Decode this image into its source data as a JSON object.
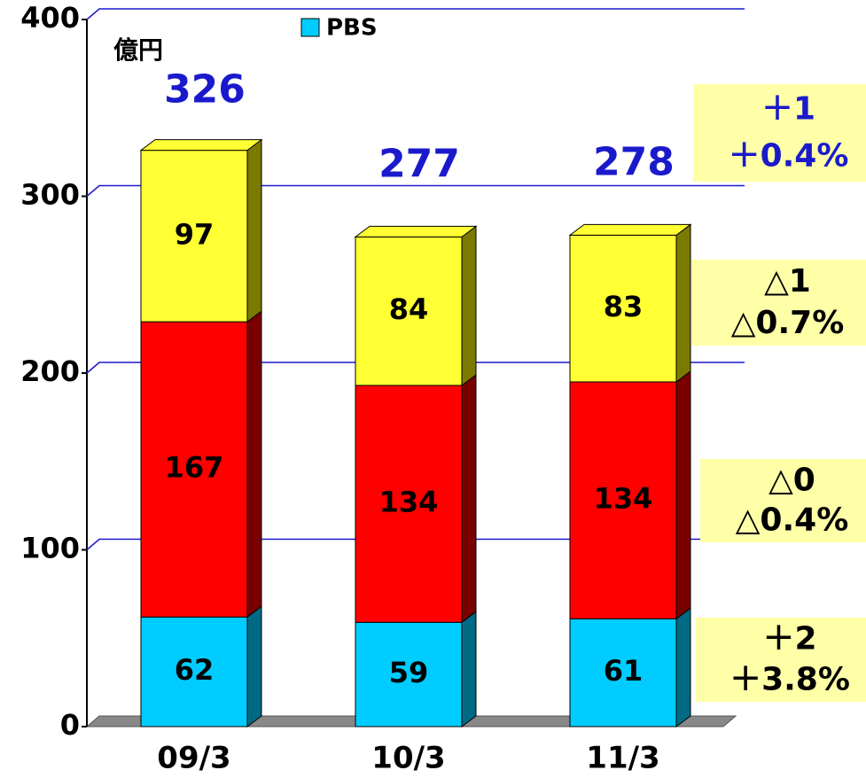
{
  "chart_data": {
    "type": "stacked-bar-3d",
    "unit_label": "億円",
    "categories": [
      "09/3",
      "10/3",
      "11/3"
    ],
    "series": [
      {
        "name": "PBS",
        "color": "#00ccff",
        "side_color": "#006a85",
        "values": [
          62,
          59,
          61
        ]
      },
      {
        "color": "#ff0000",
        "side_color": "#7a0000",
        "values": [
          167,
          134,
          134
        ]
      },
      {
        "color": "#ffff33",
        "side_color": "#7a7a00",
        "values": [
          97,
          84,
          83
        ]
      }
    ],
    "totals": [
      326,
      277,
      278
    ],
    "totals_color": "#1a1acc",
    "ylim": [
      0,
      400
    ],
    "yticks": [
      0,
      100,
      200,
      300,
      400
    ],
    "grid": true,
    "grid_color": "#1a1acc",
    "annotations": [
      {
        "lines": [
          "＋1",
          "＋0.4%"
        ],
        "color": "#1a1acc"
      },
      {
        "lines": [
          "△1",
          "△0.7%"
        ],
        "color": "#000000"
      },
      {
        "lines": [
          "△0",
          "△0.4%"
        ],
        "color": "#000000"
      },
      {
        "lines": [
          "＋2",
          "＋3.8%"
        ],
        "color": "#000000"
      }
    ]
  }
}
